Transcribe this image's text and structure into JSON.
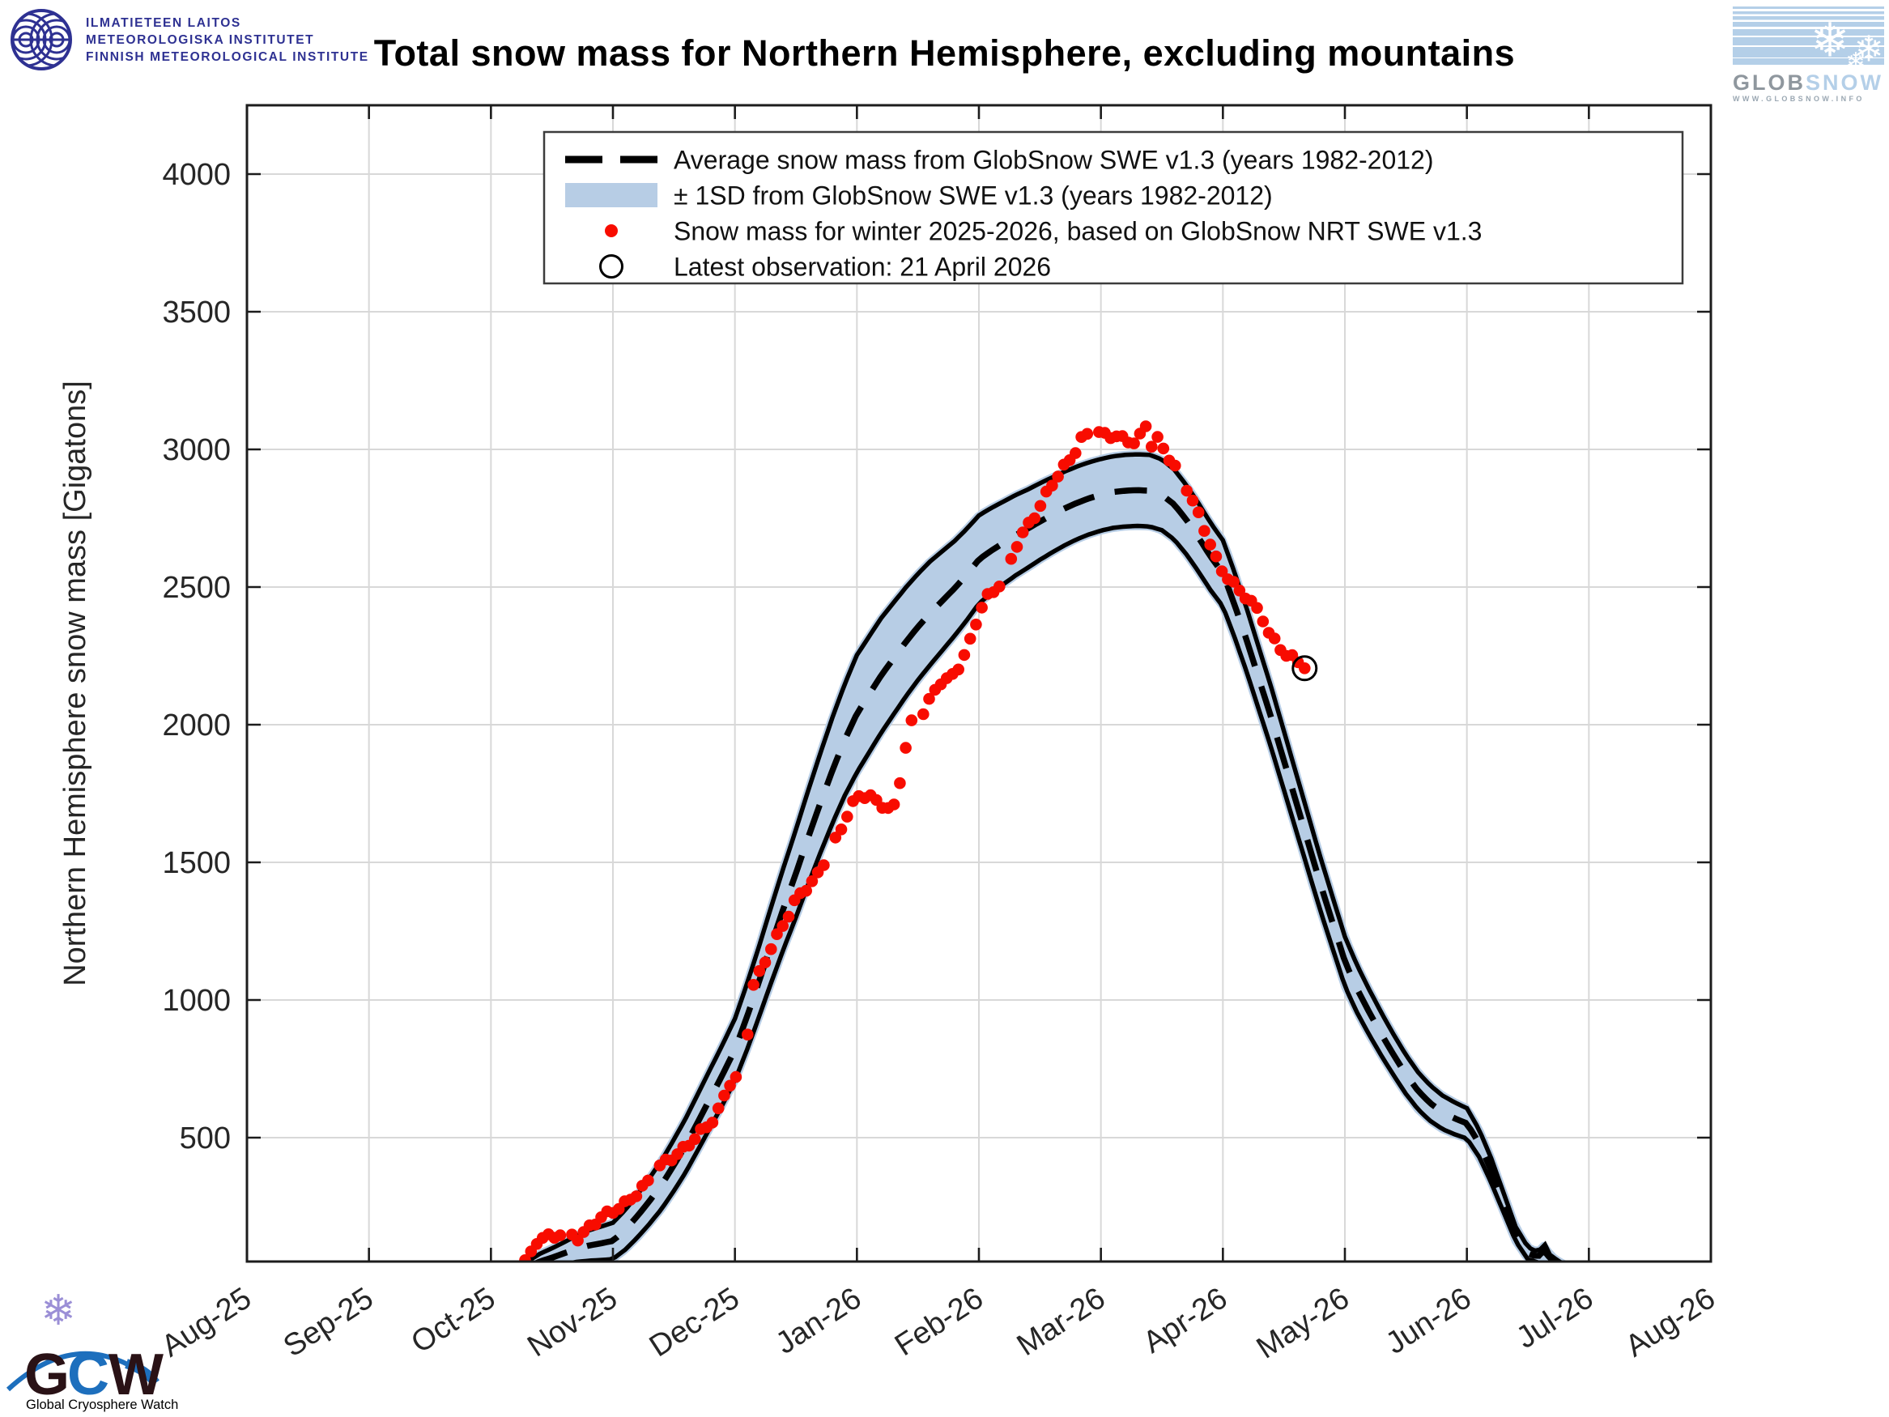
{
  "header": {
    "fmi_institute": {
      "line1": "ILMATIETEEN LAITOS",
      "line2": "METEOROLOGISKA INSTITUTET",
      "line3": "FINNISH METEOROLOGICAL INSTITUTE"
    },
    "title": "Total snow mass for Northern Hemisphere, excluding mountains",
    "globsnow": {
      "glob": "GLOB",
      "snow": "SNOW",
      "url": "WWW.GLOBSNOW.INFO"
    }
  },
  "footer": {
    "gcw": {
      "g": "G",
      "c": "C",
      "w": "W",
      "caption": "Global Cryosphere Watch"
    }
  },
  "colors": {
    "band": "#b7cde5",
    "red": "#f80c00",
    "grid": "#d8d8d8",
    "axis": "#1c1c1c",
    "text": "#262626",
    "fmi_blue": "#2e3192",
    "globsnow_gray": "#8f979e",
    "globsnow_blue": "#b4cfe8",
    "gcw_blue": "#1d6fbd",
    "gcw_dark": "#2a1216",
    "gcw_violet": "#9b8fd6"
  },
  "chart_data": {
    "type": "area",
    "title": "Total snow mass for Northern Hemisphere, excluding mountains",
    "xlabel": "",
    "ylabel": "Northern Hemisphere snow mass [Gigatons]",
    "x_tick_labels": [
      "Aug-25",
      "Sep-25",
      "Oct-25",
      "Nov-25",
      "Dec-25",
      "Jan-26",
      "Feb-26",
      "Mar-26",
      "Apr-26",
      "May-26",
      "Jun-26",
      "Jul-26",
      "Aug-26"
    ],
    "y_ticks": [
      500,
      1000,
      1500,
      2000,
      2500,
      3000,
      3500,
      4000
    ],
    "ylim": [
      0,
      4250
    ],
    "grid": true,
    "legend_position": "top-center-inside",
    "legend": [
      {
        "symbol": "dashed-line",
        "label": "Average snow mass from GlobSnow SWE v1.3 (years 1982-2012)"
      },
      {
        "symbol": "band",
        "label": "± 1SD from GlobSnow SWE v1.3 (years 1982-2012)"
      },
      {
        "symbol": "red-dot",
        "label": "Snow mass for winter 2025-2026, based on GlobSnow NRT SWE v1.3"
      },
      {
        "symbol": "open-circle",
        "label": "Latest observation: 21 April 2026"
      }
    ],
    "x_unit": "months since 1 Aug 2025 (0 = Aug-25 tick)",
    "y_unit": "Gigatons",
    "series": [
      {
        "name": "Average snow mass from GlobSnow SWE v1.3 (years 1982-2012)",
        "style": "dashed-black-line",
        "points": [
          [
            1.95,
            0
          ],
          [
            2.1,
            6
          ],
          [
            2.2,
            14
          ],
          [
            2.3,
            30
          ],
          [
            2.4,
            50
          ],
          [
            2.5,
            64
          ],
          [
            2.6,
            80
          ],
          [
            2.7,
            96
          ],
          [
            2.8,
            108
          ],
          [
            2.9,
            116
          ],
          [
            3.0,
            125
          ],
          [
            3.1,
            165
          ],
          [
            3.2,
            215
          ],
          [
            3.3,
            270
          ],
          [
            3.4,
            330
          ],
          [
            3.5,
            400
          ],
          [
            3.6,
            475
          ],
          [
            3.7,
            560
          ],
          [
            3.8,
            645
          ],
          [
            3.9,
            730
          ],
          [
            4.0,
            820
          ],
          [
            4.1,
            940
          ],
          [
            4.2,
            1070
          ],
          [
            4.3,
            1205
          ],
          [
            4.4,
            1335
          ],
          [
            4.5,
            1460
          ],
          [
            4.6,
            1590
          ],
          [
            4.7,
            1715
          ],
          [
            4.8,
            1835
          ],
          [
            4.9,
            1945
          ],
          [
            5.0,
            2040
          ],
          [
            5.1,
            2110
          ],
          [
            5.2,
            2180
          ],
          [
            5.3,
            2240
          ],
          [
            5.4,
            2300
          ],
          [
            5.5,
            2355
          ],
          [
            5.6,
            2405
          ],
          [
            5.7,
            2450
          ],
          [
            5.8,
            2495
          ],
          [
            5.9,
            2545
          ],
          [
            6.0,
            2600
          ],
          [
            6.1,
            2632
          ],
          [
            6.2,
            2660
          ],
          [
            6.3,
            2688
          ],
          [
            6.4,
            2712
          ],
          [
            6.5,
            2738
          ],
          [
            6.6,
            2762
          ],
          [
            6.7,
            2785
          ],
          [
            6.8,
            2805
          ],
          [
            6.9,
            2822
          ],
          [
            7.0,
            2835
          ],
          [
            7.1,
            2845
          ],
          [
            7.2,
            2850
          ],
          [
            7.3,
            2852
          ],
          [
            7.4,
            2850
          ],
          [
            7.5,
            2835
          ],
          [
            7.6,
            2800
          ],
          [
            7.7,
            2745
          ],
          [
            7.8,
            2680
          ],
          [
            7.9,
            2610
          ],
          [
            8.0,
            2550
          ],
          [
            8.1,
            2430
          ],
          [
            8.2,
            2300
          ],
          [
            8.3,
            2160
          ],
          [
            8.4,
            2020
          ],
          [
            8.5,
            1870
          ],
          [
            8.6,
            1720
          ],
          [
            8.7,
            1570
          ],
          [
            8.8,
            1420
          ],
          [
            8.9,
            1280
          ],
          [
            9.0,
            1140
          ],
          [
            9.1,
            1040
          ],
          [
            9.2,
            955
          ],
          [
            9.3,
            875
          ],
          [
            9.4,
            800
          ],
          [
            9.5,
            730
          ],
          [
            9.6,
            670
          ],
          [
            9.7,
            625
          ],
          [
            9.8,
            592
          ],
          [
            9.9,
            570
          ],
          [
            10.0,
            552
          ],
          [
            10.1,
            480
          ],
          [
            10.2,
            380
          ],
          [
            10.3,
            265
          ],
          [
            10.4,
            150
          ],
          [
            10.5,
            80
          ],
          [
            10.58,
            66
          ],
          [
            10.64,
            95
          ],
          [
            10.68,
            60
          ],
          [
            10.75,
            40
          ],
          [
            10.82,
            26
          ],
          [
            10.88,
            8
          ],
          [
            10.92,
            0
          ]
        ]
      },
      {
        "name": "± 1SD half-width from GlobSnow SWE v1.3 (years 1982-2012)",
        "style": "light-blue-band",
        "points": [
          [
            1.95,
            0
          ],
          [
            2.2,
            14
          ],
          [
            2.4,
            28
          ],
          [
            2.6,
            40
          ],
          [
            2.8,
            55
          ],
          [
            3.0,
            66
          ],
          [
            3.2,
            78
          ],
          [
            3.4,
            88
          ],
          [
            3.6,
            98
          ],
          [
            3.8,
            106
          ],
          [
            4.0,
            112
          ],
          [
            4.2,
            128
          ],
          [
            4.4,
            148
          ],
          [
            4.6,
            170
          ],
          [
            4.8,
            192
          ],
          [
            5.0,
            213
          ],
          [
            5.2,
            208
          ],
          [
            5.4,
            198
          ],
          [
            5.6,
            188
          ],
          [
            5.8,
            172
          ],
          [
            6.0,
            160
          ],
          [
            6.2,
            150
          ],
          [
            6.4,
            142
          ],
          [
            6.6,
            136
          ],
          [
            6.8,
            132
          ],
          [
            7.0,
            130
          ],
          [
            7.4,
            130
          ],
          [
            7.8,
            124
          ],
          [
            8.0,
            120
          ],
          [
            8.4,
            110
          ],
          [
            8.8,
            97
          ],
          [
            9.0,
            90
          ],
          [
            9.4,
            74
          ],
          [
            9.8,
            61
          ],
          [
            10.0,
            55
          ],
          [
            10.2,
            44
          ],
          [
            10.4,
            26
          ],
          [
            10.6,
            18
          ],
          [
            10.8,
            10
          ],
          [
            10.88,
            4
          ],
          [
            10.92,
            0
          ]
        ]
      },
      {
        "name": "Snow mass for winter 2025-2026, based on GlobSnow NRT SWE v1.3",
        "style": "red-dots",
        "dot_step_months": 0.048,
        "points": [
          [
            2.28,
            55
          ],
          [
            2.33,
            75
          ],
          [
            2.36,
            105
          ],
          [
            2.4,
            130
          ],
          [
            2.45,
            140
          ],
          [
            2.5,
            128
          ],
          [
            2.55,
            150
          ],
          [
            2.6,
            165
          ],
          [
            2.66,
            152
          ],
          [
            2.72,
            140
          ],
          [
            2.8,
            172
          ],
          [
            2.9,
            205
          ],
          [
            3.0,
            228
          ],
          [
            3.1,
            262
          ],
          [
            3.2,
            305
          ],
          [
            3.3,
            350
          ],
          [
            3.4,
            400
          ],
          [
            3.5,
            425
          ],
          [
            3.6,
            465
          ],
          [
            3.7,
            520
          ],
          [
            3.8,
            556
          ],
          [
            3.88,
            610
          ],
          [
            3.95,
            690
          ],
          [
            4.02,
            715
          ],
          [
            4.08,
            735
          ],
          [
            4.13,
            1040
          ],
          [
            4.18,
            1080
          ],
          [
            4.24,
            1140
          ],
          [
            4.3,
            1200
          ],
          [
            4.36,
            1245
          ],
          [
            4.43,
            1300
          ],
          [
            4.5,
            1360
          ],
          [
            4.57,
            1395
          ],
          [
            4.63,
            1425
          ],
          [
            4.7,
            1470
          ],
          [
            4.76,
            1540
          ],
          [
            4.83,
            1590
          ],
          [
            4.89,
            1645
          ],
          [
            4.95,
            1700
          ],
          [
            5.02,
            1738
          ],
          [
            5.1,
            1735
          ],
          [
            5.18,
            1715
          ],
          [
            5.26,
            1698
          ],
          [
            5.32,
            1712
          ],
          [
            5.38,
            1880
          ],
          [
            5.44,
            2005
          ],
          [
            5.52,
            2020
          ],
          [
            5.6,
            2085
          ],
          [
            5.67,
            2150
          ],
          [
            5.76,
            2168
          ],
          [
            5.86,
            2235
          ],
          [
            5.93,
            2310
          ],
          [
            6.0,
            2405
          ],
          [
            6.06,
            2455
          ],
          [
            6.12,
            2480
          ],
          [
            6.2,
            2520
          ],
          [
            6.3,
            2650
          ],
          [
            6.4,
            2730
          ],
          [
            6.5,
            2790
          ],
          [
            6.58,
            2860
          ],
          [
            6.66,
            2905
          ],
          [
            6.74,
            2960
          ],
          [
            6.8,
            3000
          ],
          [
            6.85,
            3050
          ],
          [
            6.9,
            3065
          ],
          [
            7.0,
            3060
          ],
          [
            7.1,
            3045
          ],
          [
            7.2,
            3030
          ],
          [
            7.3,
            3020
          ],
          [
            7.36,
            3105
          ],
          [
            7.41,
            3020
          ],
          [
            7.46,
            3045
          ],
          [
            7.52,
            3000
          ],
          [
            7.58,
            2955
          ],
          [
            7.65,
            2900
          ],
          [
            7.72,
            2840
          ],
          [
            7.8,
            2760
          ],
          [
            7.88,
            2680
          ],
          [
            7.95,
            2600
          ],
          [
            8.0,
            2560
          ],
          [
            8.06,
            2530
          ],
          [
            8.12,
            2490
          ],
          [
            8.18,
            2465
          ],
          [
            8.25,
            2430
          ],
          [
            8.32,
            2390
          ],
          [
            8.38,
            2330
          ],
          [
            8.45,
            2295
          ],
          [
            8.52,
            2260
          ],
          [
            8.6,
            2238
          ],
          [
            8.67,
            2205
          ]
        ],
        "extra_dots": [
          [
            2.09,
            30
          ]
        ]
      },
      {
        "name": "Latest observation",
        "style": "open-circle-marker",
        "date": "21 April 2026",
        "point": [
          8.67,
          2205
        ]
      }
    ],
    "september_blip": {
      "m": 1.44,
      "value": 40
    }
  }
}
